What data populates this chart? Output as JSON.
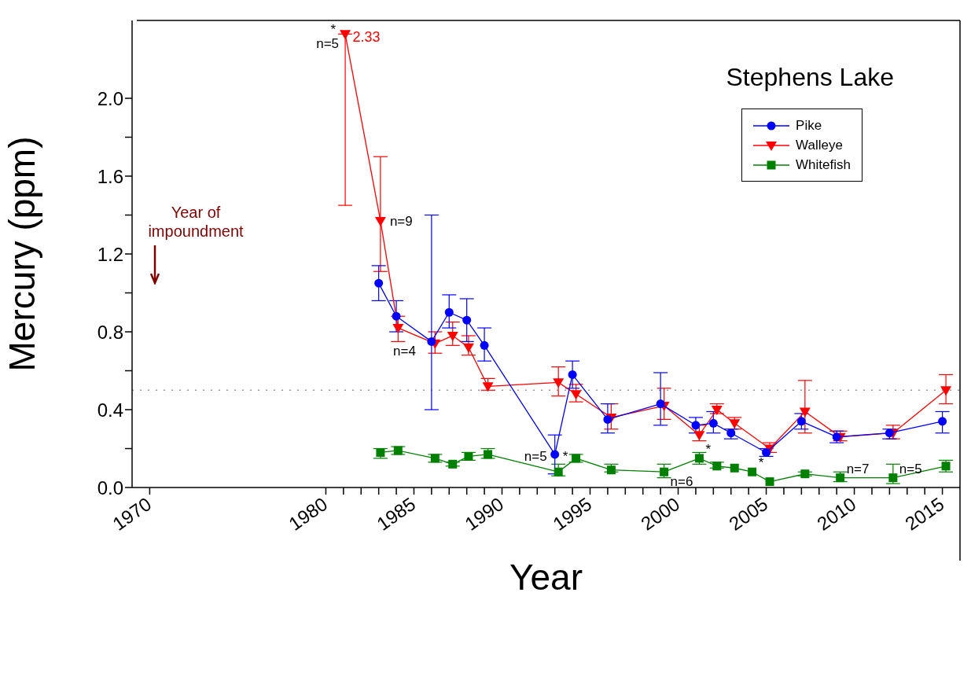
{
  "chart_data": {
    "type": "line",
    "title": "Stephens Lake",
    "xlabel": "Year",
    "ylabel": "Mercury  (ppm)",
    "xlim": [
      1969,
      2016
    ],
    "xticks": [
      1970,
      1980,
      {
        "value": 1981,
        "label": null
      },
      {
        "value": 1982,
        "label": null
      },
      {
        "value": 1983,
        "label": null
      },
      {
        "value": 1984,
        "label": null
      },
      1985,
      {
        "value": 1986,
        "label": null
      },
      {
        "value": 1987,
        "label": null
      },
      {
        "value": 1988,
        "label": null
      },
      {
        "value": 1989,
        "label": null
      },
      1990,
      {
        "value": 1991,
        "label": null
      },
      {
        "value": 1992,
        "label": null
      },
      {
        "value": 1993,
        "label": null
      },
      {
        "value": 1994,
        "label": null
      },
      1995,
      {
        "value": 1996,
        "label": null
      },
      {
        "value": 1997,
        "label": null
      },
      {
        "value": 1998,
        "label": null
      },
      {
        "value": 1999,
        "label": null
      },
      2000,
      {
        "value": 2001,
        "label": null
      },
      {
        "value": 2002,
        "label": null
      },
      {
        "value": 2003,
        "label": null
      },
      {
        "value": 2004,
        "label": null
      },
      2005,
      {
        "value": 2006,
        "label": null
      },
      {
        "value": 2007,
        "label": null
      },
      {
        "value": 2008,
        "label": null
      },
      {
        "value": 2009,
        "label": null
      },
      2010,
      {
        "value": 2011,
        "label": null
      },
      {
        "value": 2012,
        "label": null
      },
      {
        "value": 2013,
        "label": null
      },
      {
        "value": 2014,
        "label": null
      },
      2015
    ],
    "ylim": [
      0,
      2.4
    ],
    "yticks": [
      {
        "value": 0,
        "label": "0.0"
      },
      {
        "value": 0.2,
        "label": null
      },
      0.4,
      {
        "value": 0.6,
        "label": null
      },
      0.8,
      {
        "value": 1.0,
        "label": null
      },
      1.2,
      {
        "value": 1.4,
        "label": null
      },
      1.6,
      {
        "value": 1.8,
        "label": null
      },
      {
        "value": 2.0,
        "label": "2.0"
      }
    ],
    "legend": "top right",
    "ref_lines": [
      {
        "axis": "y",
        "value": 0.5,
        "color": "#999999",
        "line_style": "dotted"
      }
    ],
    "series": [
      {
        "name": "Pike",
        "color": "#0000ff",
        "marker": "circle",
        "x": [
          1983,
          1984,
          1986,
          1987,
          1988,
          1989,
          1993,
          1994,
          1996,
          1999,
          2001,
          2002,
          2003,
          2005,
          2007,
          2009,
          2012,
          2015
        ],
        "values": [
          1.05,
          0.88,
          0.75,
          0.9,
          0.86,
          0.73,
          0.17,
          0.58,
          0.35,
          0.43,
          0.32,
          0.33,
          0.28,
          0.18,
          0.34,
          0.26,
          0.28,
          0.34
        ],
        "errors": [
          [
            0.96,
            1.14
          ],
          [
            0.8,
            0.96
          ],
          [
            0.4,
            1.4
          ],
          [
            0.82,
            0.99
          ],
          [
            0.75,
            0.97
          ],
          [
            0.65,
            0.82
          ],
          [
            0.07,
            0.27
          ],
          [
            0.51,
            0.65
          ],
          [
            0.28,
            0.43
          ],
          [
            0.32,
            0.59
          ],
          [
            0.28,
            0.36
          ],
          [
            0.28,
            0.39
          ],
          [
            0.25,
            0.3
          ],
          [
            0.16,
            0.2
          ],
          [
            0.3,
            0.38
          ],
          [
            0.23,
            0.29
          ],
          [
            0.25,
            0.3
          ],
          [
            0.28,
            0.39
          ]
        ]
      },
      {
        "name": "Walleye",
        "color": "#ff0000",
        "marker": "triangle",
        "x": [
          1981.1,
          1983.1,
          1984.1,
          1986.2,
          1987.2,
          1988.1,
          1989.2,
          1993.2,
          1994.2,
          1996.2,
          1999.2,
          2001.2,
          2002.2,
          2003.2,
          2005.2,
          2007.2,
          2009.2,
          2012.2,
          2015.2
        ],
        "values": [
          2.33,
          1.37,
          0.82,
          0.74,
          0.78,
          0.72,
          0.52,
          0.54,
          0.48,
          0.36,
          0.42,
          0.27,
          0.4,
          0.33,
          0.2,
          0.39,
          0.26,
          0.28,
          0.5
        ],
        "errors": [
          [
            1.45,
            2.33
          ],
          [
            1.11,
            1.7
          ],
          [
            0.75,
            0.88
          ],
          [
            0.69,
            0.8
          ],
          [
            0.73,
            0.85
          ],
          [
            0.68,
            0.78
          ],
          [
            0.5,
            0.56
          ],
          [
            0.47,
            0.62
          ],
          [
            0.44,
            0.53
          ],
          [
            0.3,
            0.43
          ],
          [
            0.35,
            0.51
          ],
          [
            0.24,
            0.32
          ],
          [
            0.38,
            0.43
          ],
          [
            0.3,
            0.36
          ],
          [
            0.18,
            0.23
          ],
          [
            0.28,
            0.55
          ],
          [
            0.24,
            0.29
          ],
          [
            0.25,
            0.32
          ],
          [
            0.43,
            0.58
          ]
        ],
        "value_labels": [
          "2.33",
          null,
          null,
          null,
          null,
          null,
          null,
          null,
          null,
          null,
          null,
          null,
          null,
          null,
          null,
          null,
          null,
          null,
          null
        ]
      },
      {
        "name": "Whitefish",
        "color": "#008000",
        "marker": "square",
        "x": [
          1983.1,
          1984.1,
          1986.2,
          1987.2,
          1988.1,
          1989.2,
          1993.2,
          1994.2,
          1996.2,
          1999.2,
          2001.2,
          2002.2,
          2003.2,
          2004.2,
          2005.2,
          2007.2,
          2009.2,
          2012.2,
          2015.2
        ],
        "values": [
          0.18,
          0.19,
          0.15,
          0.12,
          0.16,
          0.17,
          0.08,
          0.15,
          0.09,
          0.08,
          0.15,
          0.11,
          0.1,
          0.08,
          0.03,
          0.07,
          0.05,
          0.05,
          0.11
        ],
        "errors": [
          [
            0.15,
            0.2
          ],
          [
            0.17,
            0.21
          ],
          [
            0.13,
            0.17
          ],
          [
            0.11,
            0.13
          ],
          [
            0.14,
            0.18
          ],
          [
            0.15,
            0.2
          ],
          [
            0.06,
            0.12
          ],
          [
            0.13,
            0.17
          ],
          [
            0.08,
            0.12
          ],
          [
            0.05,
            0.12
          ],
          [
            0.12,
            0.18
          ],
          [
            0.1,
            0.13
          ],
          null,
          null,
          null,
          [
            0.06,
            0.08
          ],
          [
            0.03,
            0.08
          ],
          [
            0.02,
            0.12
          ],
          [
            0.08,
            0.14
          ]
        ]
      }
    ],
    "annotations": [
      {
        "text": "*",
        "x": 1981.1,
        "y": 2.33
      },
      {
        "text": "n=5",
        "x": 1981.1,
        "y": 2.33
      },
      {
        "text": "n=9",
        "x": 1983.1,
        "y": 1.37
      },
      {
        "text": "n=4",
        "x": 1986,
        "y": 0.75
      },
      {
        "text": "n=5",
        "x": 1993,
        "y": 0.17
      },
      {
        "text": "*",
        "x": 1993,
        "y": 0.17
      },
      {
        "text": "n=6",
        "x": 1999.2,
        "y": 0.08
      },
      {
        "text": "*",
        "x": 2001.2,
        "y": 0.15
      },
      {
        "text": "*",
        "x": 2004.2,
        "y": 0.08
      },
      {
        "text": "n=7",
        "x": 2009.2,
        "y": 0.05
      },
      {
        "text": "n=5",
        "x": 2012.2,
        "y": 0.05
      },
      "Year of impoundment"
    ]
  }
}
